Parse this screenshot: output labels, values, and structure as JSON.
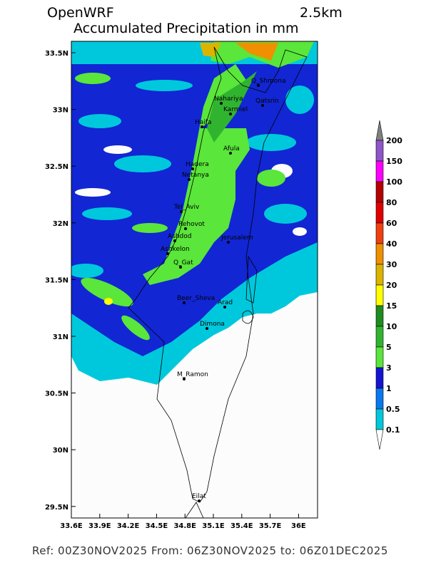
{
  "header": {
    "title": "OpenWRF",
    "resolution": "2.5km",
    "subtitle": "Accumulated Precipitation in mm"
  },
  "map": {
    "lat_labels": [
      "33.5N",
      "33N",
      "32.5N",
      "32N",
      "31.5N",
      "31N",
      "30.5N",
      "30N",
      "29.5N"
    ],
    "lon_labels": [
      "33.6E",
      "33.9E",
      "34.2E",
      "34.5E",
      "34.8E",
      "35.1E",
      "35.4E",
      "35.7E",
      "36E"
    ],
    "places": [
      "Q_Shmona",
      "Qatsrin",
      "Nahariya",
      "Karmiel",
      "Haifa",
      "Afula",
      "Hadera",
      "Netanya",
      "Tel_Aviv",
      "Rehovot",
      "Ashdod",
      "Jerusalem",
      "Ashkelon",
      "Q_Gat",
      "Beer_Sheva",
      "Arad",
      "Dimona",
      "M_Ramon",
      "Eilat"
    ]
  },
  "colorbar": {
    "levels": [
      200,
      150,
      100,
      80,
      60,
      40,
      30,
      20,
      15,
      10,
      5,
      3,
      1,
      0.5,
      0.1
    ],
    "colors": [
      "#808080",
      "#9055c8",
      "#ff00ff",
      "#b40000",
      "#e00000",
      "#f04010",
      "#f09000",
      "#dcb400",
      "#ffff00",
      "#208c20",
      "#30b430",
      "#5ae63a",
      "#1414d2",
      "#0a78f0",
      "#00c8dc",
      "#ffffff"
    ]
  },
  "footer": "Ref: 00Z30NOV2025  From: 06Z30NOV2025  to: 06Z01DEC2025"
}
